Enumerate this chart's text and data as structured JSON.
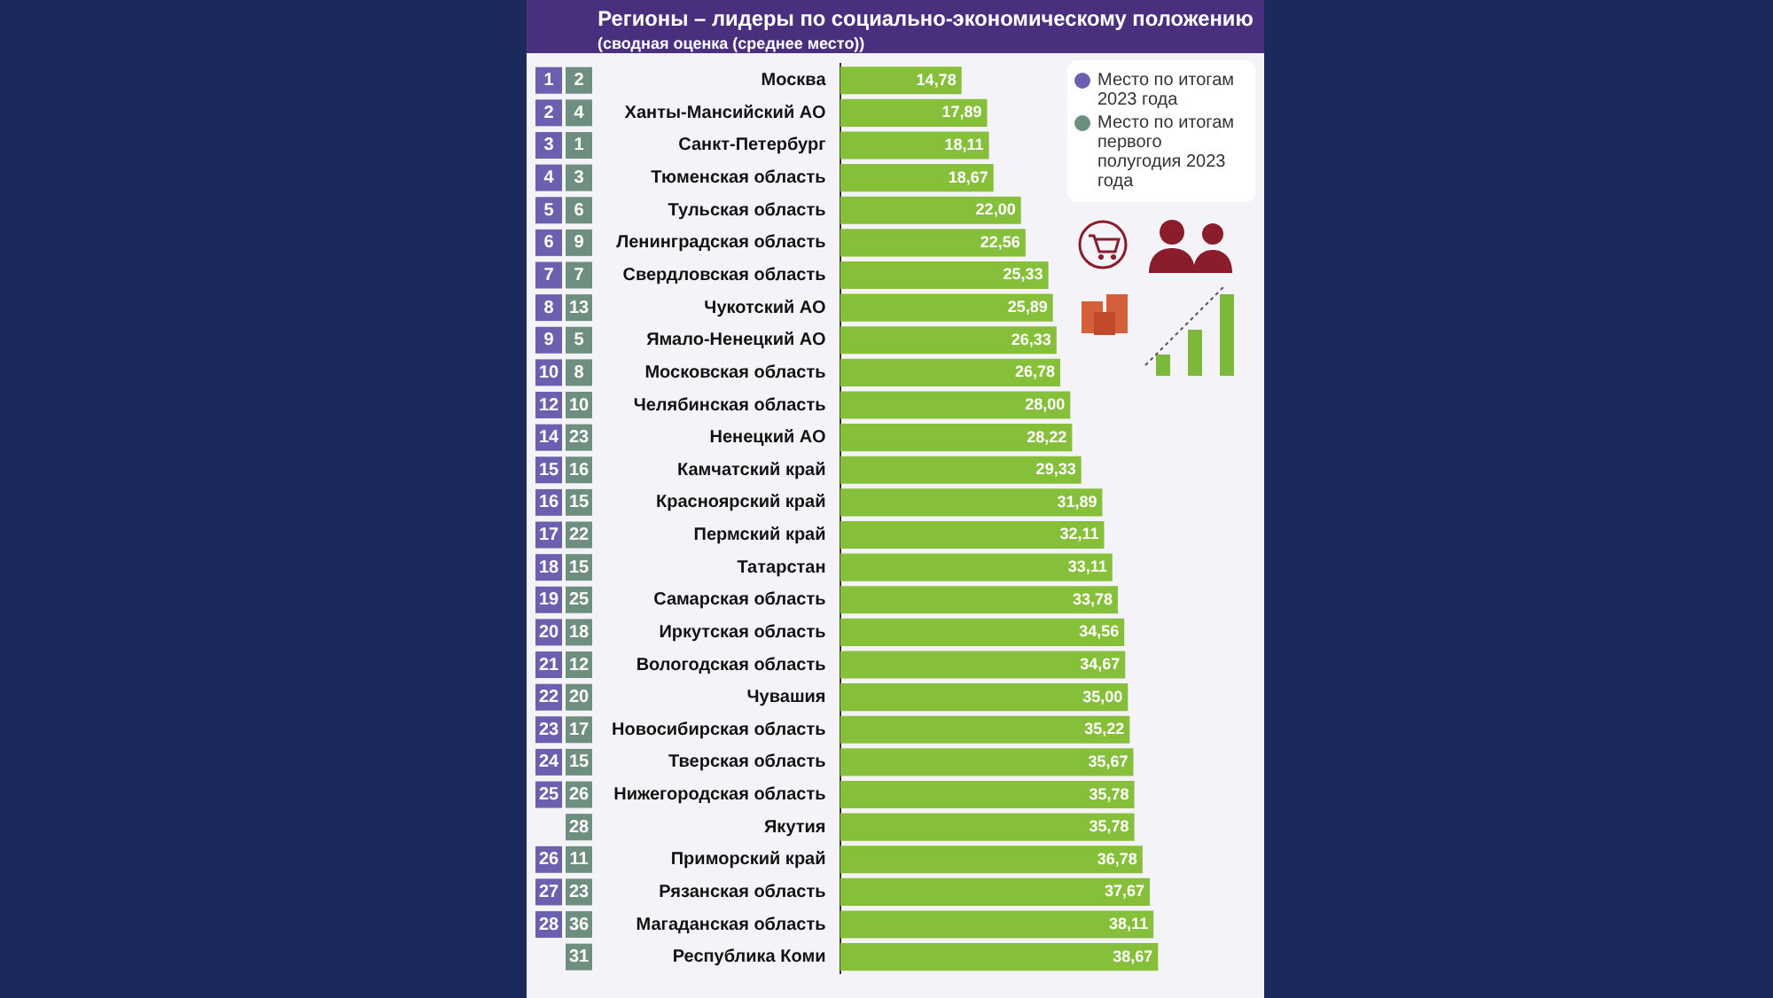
{
  "chart_data": {
    "type": "bar",
    "orientation": "horizontal",
    "title": "Регионы – лидеры по социально-экономическому положению",
    "subtitle": "(сводная оценка (среднее место))",
    "categories": [
      "Москва",
      "Ханты-Мансийский АО",
      "Санкт-Петербург",
      "Тюменская область",
      "Тульская область",
      "Ленинградская область",
      "Свердловская область",
      "Чукотский АО",
      "Ямало-Ненецкий АО",
      "Московская область",
      "Челябинская область",
      "Ненецкий АО",
      "Камчатский край",
      "Красноярский край",
      "Пермский край",
      "Татарстан",
      "Самарская область",
      "Иркутская область",
      "Вологодская область",
      "Чувашия",
      "Новосибирская область",
      "Тверская область",
      "Нижегородская область",
      "Якутия",
      "Приморский край",
      "Рязанская область",
      "Магаданская область",
      "Республика Коми"
    ],
    "series": [
      {
        "color": "#86bf3a",
        "values": [
          14.78,
          17.89,
          18.11,
          18.67,
          22.0,
          22.56,
          25.33,
          25.89,
          26.33,
          26.78,
          28.0,
          28.22,
          29.33,
          31.89,
          32.11,
          33.11,
          33.78,
          34.56,
          34.67,
          35.0,
          35.22,
          35.67,
          35.78,
          35.78,
          36.78,
          37.67,
          38.11,
          38.67
        ],
        "value_labels": [
          "14,78",
          "17,89",
          "18,11",
          "18,67",
          "22,00",
          "22,56",
          "25,33",
          "25,89",
          "26,33",
          "26,78",
          "28,00",
          "28,22",
          "29,33",
          "31,89",
          "32,11",
          "33,11",
          "33,78",
          "34,56",
          "34,67",
          "35,00",
          "35,22",
          "35,67",
          "35,78",
          "35,78",
          "36,78",
          "37,67",
          "38,11",
          "38,67"
        ]
      }
    ],
    "grid": false,
    "annotations": [
      "Место по итогам 2023 года",
      "Место по итогам первого полугодия 2023 года",
      "1 2",
      "2 4",
      "3 1",
      "4 3",
      "5 6",
      "6 9",
      "7 7",
      "8 13",
      "9 5",
      "10 8",
      "12 10",
      "14 23",
      "15 16",
      "16 15",
      "17 22",
      "18 15",
      "19 25",
      "20 18",
      "21 12",
      "22 20",
      "23 17",
      "24 15",
      "25 26",
      "28",
      "26 11",
      "27 23",
      "28 36",
      "31"
    ]
  }
}
